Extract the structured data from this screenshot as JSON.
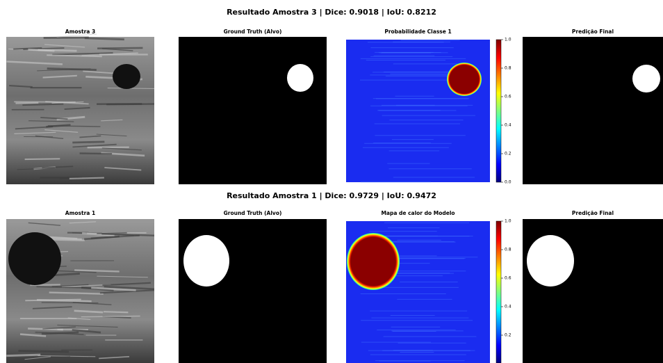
{
  "rows": [
    {
      "title": "Resultado Amostra 3 | Dice: 0.9018 | IoU: 0.8212",
      "panels": [
        "Amostra 3",
        "Ground Truth (Alvo)",
        "Probabilidade Classe 1",
        "Predição Final"
      ],
      "colorbar": {
        "lim": [
          0,
          1
        ],
        "ticks": [
          {
            "value": 0,
            "label": "0.0"
          },
          {
            "value": 0.2,
            "label": "0.2"
          },
          {
            "value": 0.4,
            "label": "0.4"
          },
          {
            "value": 0.6,
            "label": "0.6"
          },
          {
            "value": 0.8,
            "label": "0.8"
          },
          {
            "value": 1,
            "label": "1.0"
          }
        ]
      }
    },
    {
      "title": "Resultado Amostra 1 | Dice: 0.9729 | IoU: 0.9472",
      "panels": [
        "Amostra 1",
        "Ground Truth (Alvo)",
        "Mapa de calor do Modelo",
        "Predição Final"
      ],
      "colorbar": {
        "lim": [
          0,
          1
        ],
        "ticks": [
          {
            "value": 0.2,
            "label": "0.2"
          },
          {
            "value": 0.4,
            "label": "0.4"
          },
          {
            "value": 0.6,
            "label": "0.6"
          },
          {
            "value": 0.8,
            "label": "0.8"
          },
          {
            "value": 1,
            "label": "1.0"
          }
        ]
      }
    }
  ]
}
